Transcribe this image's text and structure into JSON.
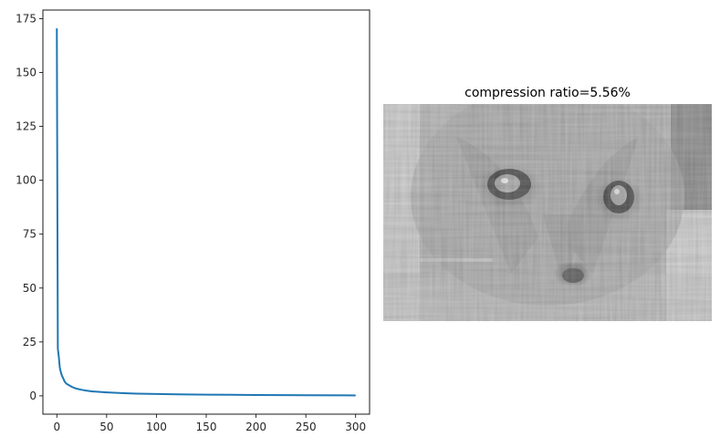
{
  "chart_data": [
    {
      "type": "line",
      "title": "",
      "xlabel": "",
      "ylabel": "",
      "xlim": [
        -14,
        314
      ],
      "ylim": [
        -8.5,
        179
      ],
      "x_ticks": [
        0,
        50,
        100,
        150,
        200,
        250,
        300
      ],
      "y_ticks": [
        0,
        25,
        50,
        75,
        100,
        125,
        150,
        175
      ],
      "grid": false,
      "color": "#1f77b4",
      "series": [
        {
          "x": [
            0,
            1,
            2,
            3,
            4,
            5,
            6,
            7,
            8,
            10,
            12,
            15,
            18,
            20,
            25,
            30,
            35,
            40,
            50,
            60,
            70,
            80,
            100,
            120,
            150,
            200,
            250,
            300
          ],
          "y": [
            170.5,
            22,
            18,
            13,
            11,
            9.5,
            8.5,
            7.5,
            6.5,
            5.5,
            5,
            4.2,
            3.6,
            3.3,
            2.8,
            2.4,
            2.1,
            1.9,
            1.6,
            1.4,
            1.2,
            1.05,
            0.85,
            0.7,
            0.55,
            0.4,
            0.3,
            0.2
          ]
        }
      ]
    },
    {
      "type": "image",
      "title": "compression ratio=5.56%",
      "description": "grayscale low-rank SVD reconstruction of a cat face",
      "colormap": "gray"
    }
  ]
}
